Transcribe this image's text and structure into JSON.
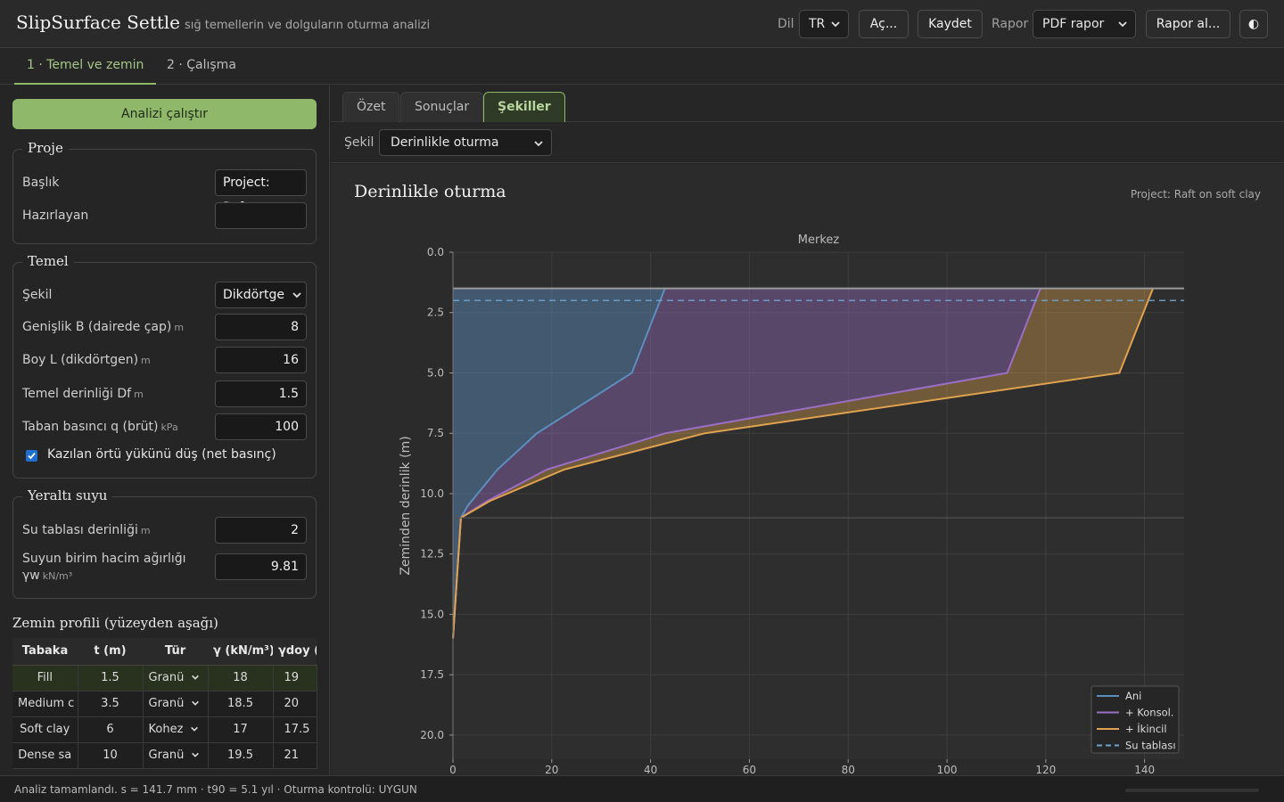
{
  "header": {
    "title": "SlipSurface Settle",
    "subtitle": "sığ temellerin ve dolguların oturma analizi",
    "lang_label": "Dil",
    "lang_value": "TR",
    "open_label": "Aç...",
    "save_label": "Kaydet",
    "report_label": "Rapor",
    "report_value": "PDF rapor",
    "get_report_label": "Rapor al...",
    "theme_icon": "◐"
  },
  "steps": [
    "1 · Temel ve zemin",
    "2 · Çalışma"
  ],
  "left": {
    "run_label": "Analizi çalıştır",
    "project": {
      "legend": "Proje",
      "title_label": "Başlık",
      "title_value": "Project: Raft",
      "author_label": "Hazırlayan",
      "author_value": ""
    },
    "foundation": {
      "legend": "Temel",
      "shape_label": "Şekil",
      "shape_value": "Dikdörtge",
      "width_label": "Genişlik B (dairede çap)",
      "width_unit": "m",
      "width_value": "8",
      "length_label": "Boy L (dikdörtgen)",
      "length_unit": "m",
      "length_value": "16",
      "depth_label": "Temel derinliği Df",
      "depth_unit": "m",
      "depth_value": "1.5",
      "pressure_label": "Taban basıncı q (brüt)",
      "pressure_unit": "kPa",
      "pressure_value": "100",
      "net_label": "Kazılan örtü yükünü düş (net basınç)",
      "net_checked": true
    },
    "water": {
      "legend": "Yeraltı suyu",
      "wt_label": "Su tablası derinliği",
      "wt_unit": "m",
      "wt_value": "2",
      "gw_label": "Suyun birim hacim ağırlığı",
      "gw_symbol": "γw",
      "gw_unit": "kN/m³",
      "gw_value": "9.81"
    },
    "soil": {
      "title": "Zemin profili (yüzeyden aşağı)",
      "headers": [
        "Tabaka",
        "t (m)",
        "Tür",
        "γ (kN/m³)",
        "γdoy (k"
      ],
      "rows": [
        {
          "name": "Fill",
          "t": "1.5",
          "type": "Granü",
          "g": "18",
          "gs": "19"
        },
        {
          "name": "Medium c",
          "t": "3.5",
          "type": "Granü",
          "g": "18.5",
          "gs": "20"
        },
        {
          "name": "Soft clay",
          "t": "6",
          "type": "Kohez",
          "g": "17",
          "gs": "17.5"
        },
        {
          "name": "Dense sa",
          "t": "10",
          "type": "Granü",
          "g": "19.5",
          "gs": "21"
        }
      ]
    }
  },
  "right": {
    "tabs": [
      "Özet",
      "Sonuçlar",
      "Şekiller"
    ],
    "figure_label": "Şekil",
    "figure_value": "Derinlikle oturma",
    "card_title": "Derinlikle oturma",
    "card_project": "Project: Raft on soft clay"
  },
  "chart_data": {
    "type": "area",
    "title": "Merkez",
    "xlabel": "",
    "ylabel": "Zeminden derinlik (m)",
    "xlim": [
      0,
      148
    ],
    "ylim": [
      21,
      0
    ],
    "xticks": [
      "0",
      "20",
      "40",
      "60",
      "80",
      "100",
      "120",
      "140"
    ],
    "yticks": [
      "0.0",
      "2.5",
      "5.0",
      "7.5",
      "10.0",
      "12.5",
      "15.0",
      "17.5",
      "20.0"
    ],
    "grid": true,
    "legend_position": "bottom-right",
    "colors": {
      "ani": "#5b8fbf",
      "konsol": "#9b6fc6",
      "ikincil": "#e0a24e",
      "water": "#6fa3cf"
    },
    "series": [
      {
        "name": "Ani",
        "depth": [
          1.5,
          5.0,
          7.5,
          9.0,
          10.5,
          11.0,
          16.0
        ],
        "settlement": [
          42.9,
          36.2,
          17.0,
          9.0,
          3.0,
          1.6,
          0.0
        ]
      },
      {
        "name": "+ Konsol.",
        "depth": [
          1.5,
          5.0,
          7.5,
          9.0,
          10.3,
          11.0,
          16.0
        ],
        "settlement": [
          118.9,
          112.2,
          43.0,
          19.0,
          7.0,
          1.6,
          0.0
        ]
      },
      {
        "name": "+ İkincil",
        "depth": [
          1.5,
          5.0,
          7.5,
          9.0,
          10.3,
          11.0,
          16.0
        ],
        "settlement": [
          141.7,
          134.9,
          51.0,
          22.5,
          7.5,
          1.6,
          0.0
        ]
      }
    ],
    "water_table": {
      "name": "Su tablası",
      "depth": 2.0
    },
    "foundation_level": 1.5,
    "layer_boundary": 11.0
  },
  "status": "Analiz tamamlandı. s = 141.7 mm · t90 = 5.1 yıl · Oturma kontrolü: UYGUN"
}
